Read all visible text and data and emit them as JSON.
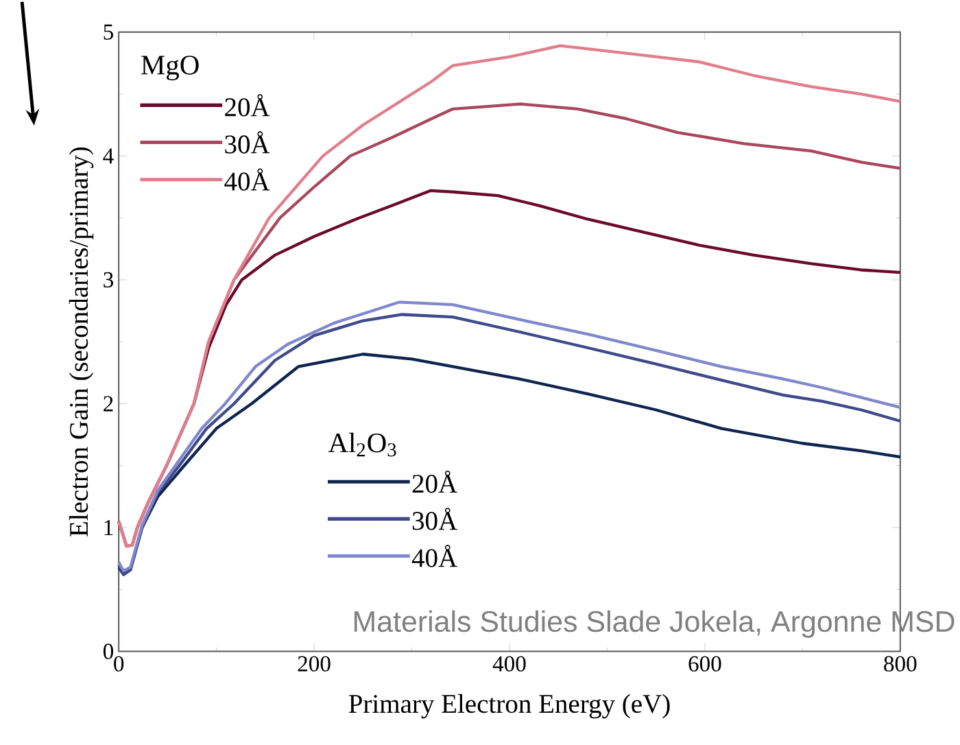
{
  "chart_data": {
    "type": "line",
    "xlabel": "Primary Electron Energy (eV)",
    "ylabel": "Electron Gain (secondaries/primary)",
    "legend_title": "MgO",
    "legend": "top left",
    "marker": "none",
    "line_style": "solid",
    "xlim": [
      0,
      800
    ],
    "ylim": [
      0,
      5
    ],
    "xticks": [
      0,
      200,
      400,
      600,
      800
    ],
    "yticks": [
      0,
      1,
      2,
      3,
      4,
      5
    ],
    "annotations": [
      "Al$_{2}$O$_{3}$",
      "Materials Studies Slade Jokela, Argonne MSD"
    ],
    "series": [
      {
        "name": "20Å",
        "color": "#6b0a2a",
        "x": [
          0,
          8,
          14,
          19,
          30,
          49,
          77,
          92,
          110,
          126,
          160,
          200,
          246,
          280,
          319,
          342,
          388,
          430,
          480,
          540,
          594,
          650,
          709,
          760,
          800
        ],
        "values": [
          1.05,
          0.85,
          0.86,
          1.0,
          1.2,
          1.5,
          2.0,
          2.45,
          2.8,
          3.0,
          3.2,
          3.35,
          3.5,
          3.6,
          3.72,
          3.71,
          3.68,
          3.6,
          3.49,
          3.38,
          3.28,
          3.2,
          3.13,
          3.08,
          3.06
        ]
      },
      {
        "name": "30Å",
        "color": "#a8485e",
        "x": [
          0,
          8,
          14,
          19,
          30,
          49,
          77,
          92,
          118,
          165,
          200,
          237,
          280,
          320,
          342,
          411,
          470,
          520,
          572,
          640,
          709,
          760,
          800
        ],
        "values": [
          1.05,
          0.85,
          0.86,
          1.0,
          1.2,
          1.5,
          2.0,
          2.5,
          3.0,
          3.5,
          3.75,
          4.0,
          4.15,
          4.3,
          4.38,
          4.42,
          4.38,
          4.3,
          4.19,
          4.1,
          4.04,
          3.95,
          3.9
        ]
      },
      {
        "name": "40Å",
        "color": "#e07f8c",
        "x": [
          0,
          8,
          14,
          19,
          30,
          49,
          77,
          92,
          118,
          154,
          209,
          250,
          290,
          320,
          342,
          400,
          452,
          530,
          594,
          650,
          709,
          760,
          800
        ],
        "values": [
          1.05,
          0.85,
          0.86,
          1.0,
          1.2,
          1.5,
          2.0,
          2.5,
          3.0,
          3.5,
          4.0,
          4.25,
          4.45,
          4.6,
          4.73,
          4.8,
          4.89,
          4.82,
          4.76,
          4.65,
          4.56,
          4.5,
          4.44
        ]
      },
      {
        "name": "20Å",
        "color": "#0f2550",
        "x": [
          0,
          5,
          12,
          24,
          40,
          67,
          100,
          136,
          184,
          250,
          300,
          342,
          410,
          480,
          550,
          617,
          700,
          760,
          800
        ],
        "values": [
          0.68,
          0.62,
          0.66,
          1.0,
          1.25,
          1.5,
          1.8,
          2.0,
          2.3,
          2.4,
          2.36,
          2.3,
          2.2,
          2.08,
          1.95,
          1.8,
          1.68,
          1.62,
          1.57
        ]
      },
      {
        "name": "30Å",
        "color": "#3f4a8a",
        "x": [
          0,
          5,
          12,
          24,
          40,
          62,
          90,
          118,
          160,
          200,
          250,
          290,
          342,
          410,
          481,
          550,
          617,
          680,
          720,
          760,
          800
        ],
        "values": [
          0.7,
          0.62,
          0.66,
          1.0,
          1.28,
          1.5,
          1.8,
          2.0,
          2.35,
          2.55,
          2.67,
          2.72,
          2.7,
          2.58,
          2.45,
          2.32,
          2.19,
          2.07,
          2.02,
          1.95,
          1.86
        ]
      },
      {
        "name": "40Å",
        "color": "#8088cc",
        "x": [
          0,
          5,
          12,
          24,
          40,
          58,
          85,
          109,
          140,
          173,
          220,
          287,
          342,
          410,
          481,
          550,
          617,
          680,
          720,
          760,
          800
        ],
        "values": [
          0.72,
          0.65,
          0.68,
          1.02,
          1.3,
          1.5,
          1.8,
          2.0,
          2.3,
          2.48,
          2.65,
          2.82,
          2.8,
          2.68,
          2.56,
          2.43,
          2.3,
          2.2,
          2.13,
          2.05,
          1.97
        ]
      }
    ]
  }
}
